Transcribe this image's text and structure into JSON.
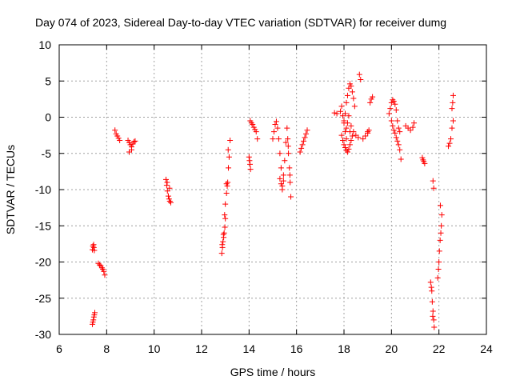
{
  "chart_data": {
    "type": "scatter",
    "title": "Day 074 of 2023, Sidereal Day-to-day VTEC variation (SDTVAR) for receiver dumg",
    "xlabel": "GPS time / hours",
    "ylabel": "SDTVAR / TECUs",
    "xlim": [
      6,
      24
    ],
    "ylim": [
      -30,
      10
    ],
    "xticks": [
      6,
      8,
      10,
      12,
      14,
      16,
      18,
      20,
      22,
      24
    ],
    "yticks": [
      -30,
      -25,
      -20,
      -15,
      -10,
      -5,
      0,
      5,
      10
    ],
    "grid": true,
    "marker": "+",
    "color": "#ff0000",
    "clusters": [
      {
        "x": [
          7.4,
          7.42,
          7.45,
          7.46,
          7.48
        ],
        "y": [
          -18.3,
          -17.8,
          -17.6,
          -18.0,
          -18.4
        ]
      },
      {
        "x": [
          7.4,
          7.42,
          7.44,
          7.46,
          7.48,
          7.5
        ],
        "y": [
          -28.6,
          -28.3,
          -28.0,
          -27.6,
          -27.3,
          -27.0
        ]
      },
      {
        "x": [
          7.65,
          7.7,
          7.75,
          7.8,
          7.84,
          7.88,
          7.92
        ],
        "y": [
          -20.2,
          -20.4,
          -20.5,
          -20.8,
          -21.0,
          -21.3,
          -21.8
        ]
      },
      {
        "x": [
          8.35,
          8.4,
          8.45,
          8.5,
          8.55
        ],
        "y": [
          -1.8,
          -2.3,
          -2.6,
          -2.9,
          -3.2
        ]
      },
      {
        "x": [
          8.9,
          8.95,
          9.0,
          9.05,
          9.1,
          9.15,
          9.2,
          8.95,
          9.05
        ],
        "y": [
          -3.2,
          -3.5,
          -3.8,
          -4.1,
          -3.7,
          -3.4,
          -3.3,
          -4.8,
          -4.5
        ]
      },
      {
        "x": [
          10.5,
          10.53,
          10.56,
          10.6,
          10.63,
          10.66,
          10.7,
          10.55,
          10.65
        ],
        "y": [
          -8.6,
          -9.4,
          -10.2,
          -10.9,
          -11.3,
          -11.6,
          -11.8,
          -9.0,
          -9.8
        ]
      },
      {
        "x": [
          12.85,
          12.88,
          12.9,
          12.93,
          12.95,
          12.98,
          13.0,
          12.87,
          12.92,
          12.97
        ],
        "y": [
          -18.8,
          -18.0,
          -17.2,
          -16.6,
          -16.0,
          -15.2,
          -14.0,
          -17.6,
          -16.2,
          -13.5
        ]
      },
      {
        "x": [
          13.0,
          13.05,
          13.08,
          13.1,
          13.13,
          13.16,
          13.2,
          13.05,
          13.12
        ],
        "y": [
          -12.0,
          -10.5,
          -9.5,
          -9.0,
          -7.0,
          -5.5,
          -3.2,
          -9.2,
          -4.5
        ]
      },
      {
        "x": [
          14.0,
          14.02,
          14.04,
          14.06
        ],
        "y": [
          -5.5,
          -6.0,
          -6.5,
          -7.2
        ]
      },
      {
        "x": [
          14.05,
          14.1,
          14.15,
          14.2,
          14.25,
          14.3,
          14.35
        ],
        "y": [
          -0.5,
          -0.8,
          -1.0,
          -1.4,
          -1.7,
          -2.0,
          -3.0
        ]
      },
      {
        "x": [
          15.0,
          15.05,
          15.1,
          15.15,
          15.2,
          15.25,
          15.3,
          15.35
        ],
        "y": [
          -3.0,
          -2.0,
          -1.0,
          -0.6,
          -1.5,
          -3.0,
          -5.0,
          -7.0
        ]
      },
      {
        "x": [
          15.3,
          15.35,
          15.4,
          15.45,
          15.5,
          15.55,
          15.4,
          15.45
        ],
        "y": [
          -8.5,
          -9.2,
          -10.0,
          -8.8,
          -6.0,
          -3.5,
          -9.5,
          -8.0
        ]
      },
      {
        "x": [
          15.6,
          15.63,
          15.66,
          15.7,
          15.73,
          15.76,
          15.65,
          15.72
        ],
        "y": [
          -1.5,
          -3.0,
          -5.0,
          -7.0,
          -9.0,
          -11.0,
          -4.0,
          -8.0
        ]
      },
      {
        "x": [
          16.15,
          16.2,
          16.25,
          16.3,
          16.35,
          16.4,
          16.45
        ],
        "y": [
          -4.8,
          -4.3,
          -3.8,
          -3.3,
          -2.8,
          -2.3,
          -1.8
        ]
      },
      {
        "x": [
          17.6,
          17.7,
          17.85,
          17.9,
          17.95,
          18.0,
          18.05,
          18.1
        ],
        "y": [
          0.6,
          0.5,
          0.8,
          1.5,
          0.2,
          -0.8,
          -2.0,
          -3.0
        ]
      },
      {
        "x": [
          17.9,
          17.95,
          18.0,
          18.05,
          18.1,
          18.15,
          18.2,
          18.25,
          18.3,
          18.35
        ],
        "y": [
          -2.5,
          -3.2,
          -3.8,
          -4.2,
          -4.6,
          -4.8,
          -4.4,
          -3.8,
          -3.2,
          -2.6
        ]
      },
      {
        "x": [
          18.1,
          18.15,
          18.2,
          18.25,
          18.3,
          18.35,
          18.4,
          18.45
        ],
        "y": [
          2.0,
          3.0,
          4.0,
          4.6,
          4.3,
          3.5,
          2.6,
          1.5
        ]
      },
      {
        "x": [
          18.0,
          18.05,
          18.1,
          18.15,
          18.2,
          18.25,
          18.3
        ],
        "y": [
          -0.5,
          0.5,
          -1.5,
          -0.8,
          0.2,
          -2.0,
          -1.2
        ]
      },
      {
        "x": [
          18.4,
          18.5,
          18.6,
          18.65,
          18.7,
          18.8,
          18.9,
          19.0
        ],
        "y": [
          -2.0,
          -2.5,
          -2.8,
          5.9,
          5.2,
          -3.0,
          -2.6,
          -2.2
        ]
      },
      {
        "x": [
          19.0,
          19.05,
          19.1,
          19.15,
          19.2
        ],
        "y": [
          -2.0,
          -1.8,
          2.0,
          2.5,
          2.8
        ]
      },
      {
        "x": [
          19.9,
          19.95,
          20.0,
          20.05,
          20.1,
          20.15,
          20.2,
          20.25,
          20.3,
          20.35
        ],
        "y": [
          0.5,
          1.2,
          2.0,
          2.4,
          2.2,
          1.8,
          1.0,
          -0.5,
          -1.5,
          -2.0
        ]
      },
      {
        "x": [
          20.0,
          20.05,
          20.1,
          20.15,
          20.2,
          20.25,
          20.3,
          20.35,
          20.4
        ],
        "y": [
          -0.5,
          -1.2,
          -1.8,
          -2.2,
          -2.8,
          -3.3,
          -3.8,
          -4.5,
          -5.8
        ]
      },
      {
        "x": [
          20.6,
          20.7,
          20.8,
          20.9,
          20.95
        ],
        "y": [
          -1.2,
          -1.5,
          -1.8,
          -1.4,
          -0.8
        ]
      },
      {
        "x": [
          21.3,
          21.33,
          21.36,
          21.4
        ],
        "y": [
          -5.6,
          -5.9,
          -6.1,
          -6.4
        ]
      },
      {
        "x": [
          21.65,
          21.7,
          21.72,
          21.75,
          21.78,
          21.8,
          21.68,
          21.74
        ],
        "y": [
          -22.8,
          -24.0,
          -25.5,
          -26.8,
          -28.0,
          -29.0,
          -23.5,
          -27.5
        ]
      },
      {
        "x": [
          21.75,
          21.78
        ],
        "y": [
          -8.8,
          -9.8
        ]
      },
      {
        "x": [
          21.95,
          21.98,
          22.0,
          22.02,
          22.05,
          22.08,
          22.1,
          22.12,
          22.06
        ],
        "y": [
          -22.2,
          -21.0,
          -20.0,
          -18.5,
          -17.0,
          -16.0,
          -15.0,
          -13.5,
          -12.2
        ]
      },
      {
        "x": [
          22.4,
          22.45,
          22.5,
          22.55,
          22.6,
          22.55,
          22.58,
          22.6
        ],
        "y": [
          -4.0,
          -3.6,
          -3.0,
          -1.5,
          -0.5,
          1.2,
          2.0,
          3.0
        ]
      }
    ]
  }
}
